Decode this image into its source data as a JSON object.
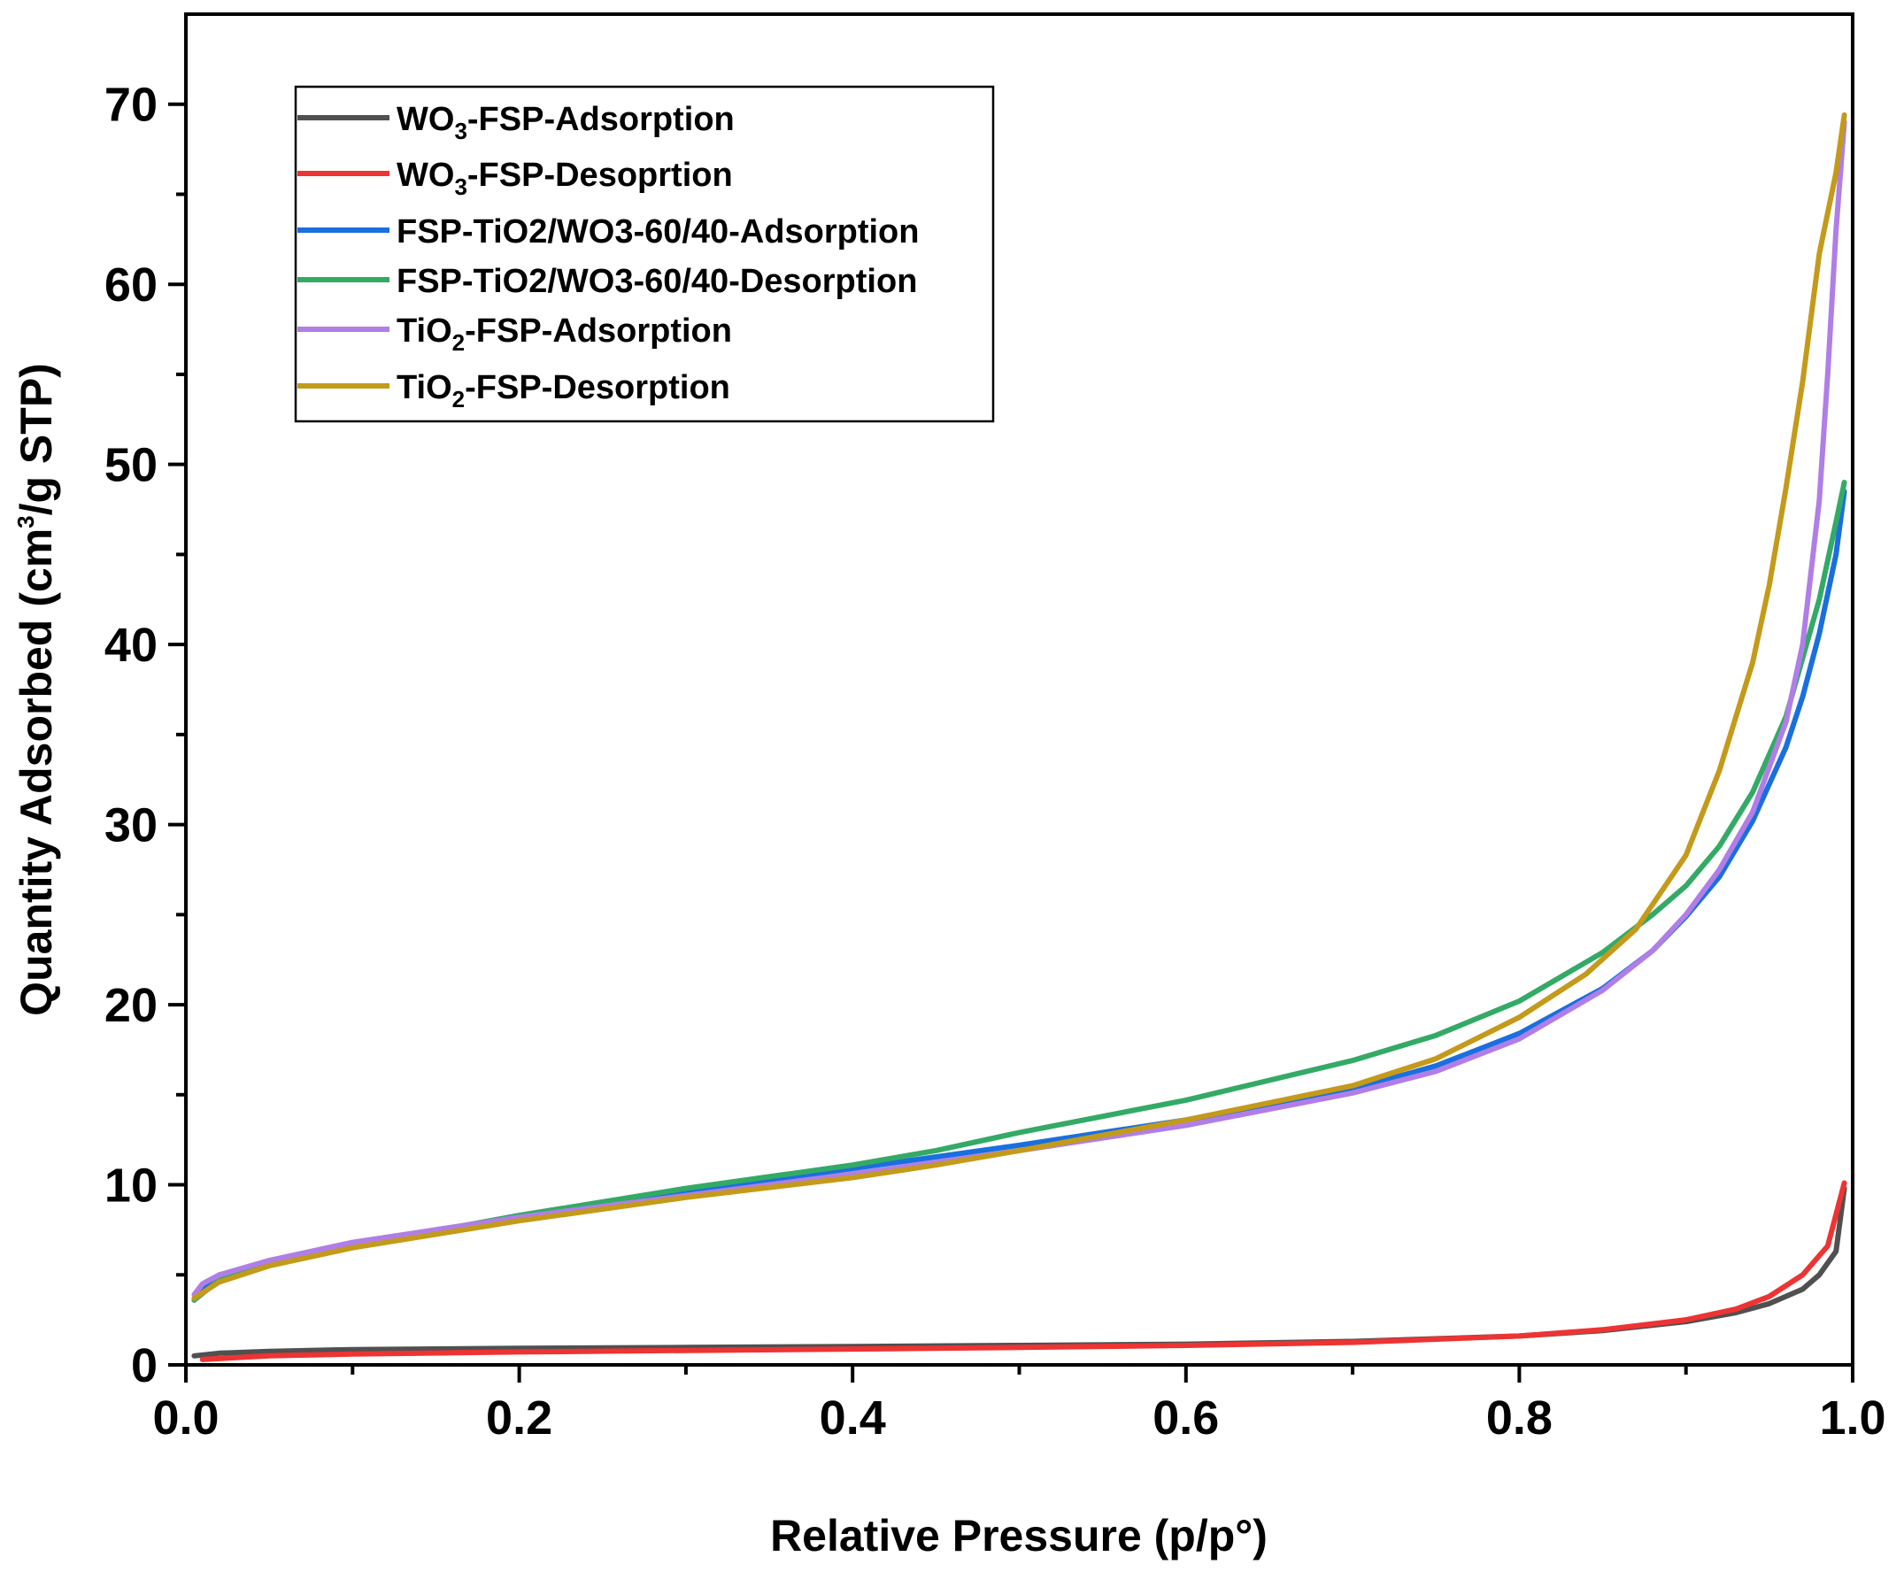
{
  "chart_data": {
    "type": "line",
    "title": "",
    "xlabel": "Relative Pressure (p/p°)",
    "ylabel_parts": [
      "Quantity Adsorbed (cm",
      "3",
      "/g STP)"
    ],
    "xlim": [
      0.0,
      1.0
    ],
    "ylim": [
      0,
      75
    ],
    "x_ticks": [
      0.0,
      0.2,
      0.4,
      0.6,
      0.8,
      1.0
    ],
    "x_tick_labels": [
      "0.0",
      "0.2",
      "0.4",
      "0.6",
      "0.8",
      "1.0"
    ],
    "y_ticks": [
      0,
      10,
      20,
      30,
      40,
      50,
      60,
      70
    ],
    "y_tick_labels": [
      "0",
      "10",
      "20",
      "30",
      "40",
      "50",
      "60",
      "70"
    ],
    "legend_position": "top-left",
    "series": [
      {
        "name": "WO3-FSP-Adsorption",
        "label_parts": [
          "WO",
          "3",
          "-FSP-Adsorption"
        ],
        "color": "#505050",
        "x": [
          0.005,
          0.02,
          0.05,
          0.1,
          0.2,
          0.3,
          0.4,
          0.5,
          0.6,
          0.7,
          0.8,
          0.85,
          0.9,
          0.93,
          0.95,
          0.97,
          0.98,
          0.99,
          0.995
        ],
        "y": [
          0.5,
          0.65,
          0.75,
          0.85,
          0.92,
          0.97,
          1.02,
          1.08,
          1.15,
          1.3,
          1.6,
          1.9,
          2.4,
          2.9,
          3.4,
          4.2,
          5.0,
          6.3,
          9.8
        ]
      },
      {
        "name": "WO3-FSP-Desoprtion",
        "label_parts": [
          "WO",
          "3",
          "-FSP-Desoprtion"
        ],
        "color": "#ee3333",
        "x": [
          0.01,
          0.05,
          0.1,
          0.2,
          0.3,
          0.4,
          0.5,
          0.6,
          0.7,
          0.8,
          0.85,
          0.9,
          0.93,
          0.95,
          0.97,
          0.985,
          0.995
        ],
        "y": [
          0.3,
          0.5,
          0.6,
          0.72,
          0.8,
          0.88,
          0.97,
          1.08,
          1.25,
          1.6,
          1.95,
          2.5,
          3.1,
          3.8,
          5.0,
          6.6,
          10.1
        ]
      },
      {
        "name": "FSP-TiO2/WO3-60/40-Adsorption",
        "label_parts": [
          "FSP-TiO2/WO3-60/40-Adsorption"
        ],
        "color": "#1a6fdf",
        "x": [
          0.005,
          0.01,
          0.02,
          0.05,
          0.1,
          0.15,
          0.2,
          0.3,
          0.4,
          0.5,
          0.6,
          0.7,
          0.75,
          0.8,
          0.85,
          0.88,
          0.9,
          0.92,
          0.94,
          0.96,
          0.97,
          0.98,
          0.99,
          0.995
        ],
        "y": [
          3.6,
          4.2,
          4.8,
          5.6,
          6.6,
          7.5,
          8.2,
          9.6,
          10.9,
          12.2,
          13.6,
          15.3,
          16.6,
          18.4,
          20.9,
          23.0,
          24.9,
          27.1,
          30.2,
          34.3,
          37.1,
          40.6,
          45.0,
          48.5
        ]
      },
      {
        "name": "FSP-TiO2/WO3-60/40-Desorption",
        "label_parts": [
          "FSP-TiO2/WO3-60/40-Desorption"
        ],
        "color": "#33aa66",
        "x": [
          0.005,
          0.02,
          0.05,
          0.1,
          0.2,
          0.3,
          0.4,
          0.45,
          0.5,
          0.6,
          0.7,
          0.75,
          0.8,
          0.85,
          0.88,
          0.9,
          0.92,
          0.94,
          0.96,
          0.98,
          0.99,
          0.995
        ],
        "y": [
          3.6,
          4.7,
          5.6,
          6.6,
          8.3,
          9.8,
          11.1,
          11.9,
          12.9,
          14.7,
          16.9,
          18.3,
          20.2,
          22.9,
          25.0,
          26.6,
          28.8,
          31.8,
          36.0,
          42.5,
          46.8,
          49.0
        ]
      },
      {
        "name": "TiO2-FSP-Adsorption",
        "label_parts": [
          "TiO",
          "2",
          "-FSP-Adsorption"
        ],
        "color": "#b07ee6",
        "x": [
          0.005,
          0.01,
          0.02,
          0.05,
          0.1,
          0.15,
          0.2,
          0.3,
          0.4,
          0.5,
          0.6,
          0.7,
          0.75,
          0.8,
          0.85,
          0.88,
          0.9,
          0.92,
          0.94,
          0.96,
          0.97,
          0.98,
          0.985,
          0.99,
          0.995
        ],
        "y": [
          3.9,
          4.5,
          5.0,
          5.8,
          6.8,
          7.5,
          8.2,
          9.4,
          10.6,
          11.9,
          13.3,
          15.1,
          16.3,
          18.1,
          20.8,
          23.0,
          25.0,
          27.5,
          30.7,
          35.7,
          40.0,
          48.0,
          55.0,
          63.0,
          69.0
        ]
      },
      {
        "name": "TiO2-FSP-Desorption",
        "label_parts": [
          "TiO",
          "2",
          "-FSP-Desorption"
        ],
        "color": "#c49a1a",
        "x": [
          0.005,
          0.02,
          0.05,
          0.1,
          0.2,
          0.3,
          0.4,
          0.45,
          0.5,
          0.6,
          0.7,
          0.75,
          0.8,
          0.84,
          0.87,
          0.9,
          0.92,
          0.94,
          0.95,
          0.96,
          0.97,
          0.98,
          0.99,
          0.995
        ],
        "y": [
          3.7,
          4.6,
          5.5,
          6.5,
          8.0,
          9.3,
          10.4,
          11.1,
          11.9,
          13.6,
          15.5,
          17.0,
          19.3,
          21.7,
          24.2,
          28.3,
          33.0,
          39.0,
          43.3,
          48.7,
          54.6,
          61.7,
          66.2,
          69.4
        ]
      }
    ]
  }
}
